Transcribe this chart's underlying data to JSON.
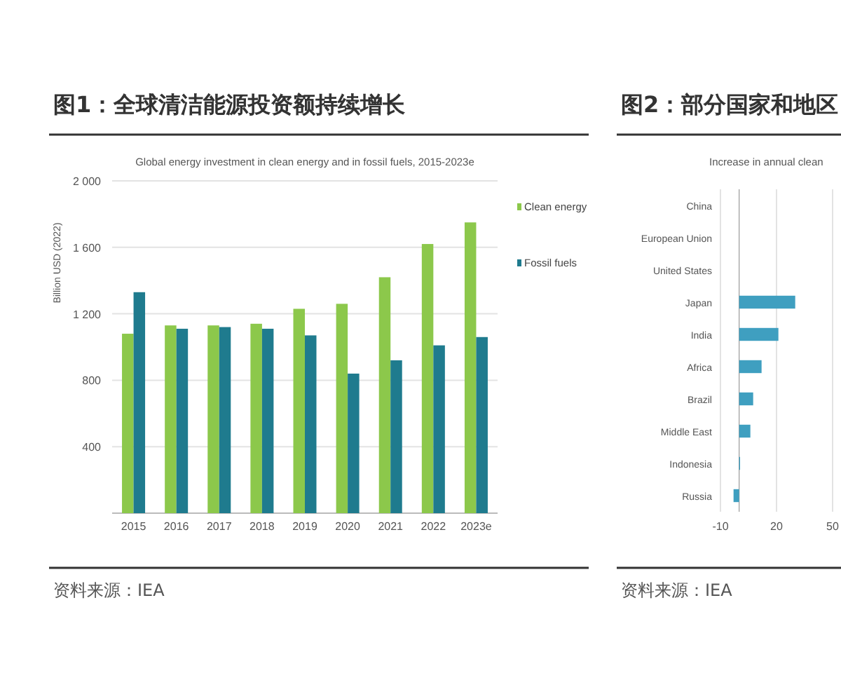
{
  "chart_data": [
    {
      "type": "bar",
      "title": "图1：全球清洁能源投资额持续增长",
      "subtitle": "Global energy investment in clean energy and in fossil fuels, 2015-2023e",
      "ylabel": "Billion USD (2022)",
      "categories": [
        "2015",
        "2016",
        "2017",
        "2018",
        "2019",
        "2020",
        "2021",
        "2022",
        "2023e"
      ],
      "series": [
        {
          "name": "Clean energy",
          "color": "#8cc84b",
          "values": [
            1080,
            1130,
            1130,
            1140,
            1230,
            1260,
            1420,
            1620,
            1750
          ]
        },
        {
          "name": "Fossil fuels",
          "color": "#1f7b8e",
          "values": [
            1330,
            1110,
            1120,
            1110,
            1070,
            840,
            920,
            1010,
            1060
          ]
        }
      ],
      "ylim": [
        0,
        2000
      ],
      "yticks": [
        {
          "value": 0,
          "label": null
        },
        {
          "value": 400,
          "label": "400"
        },
        {
          "value": 800,
          "label": "800"
        },
        {
          "value": 1200,
          "label": "1 200"
        },
        {
          "value": 1600,
          "label": "1 600"
        },
        {
          "value": 2000,
          "label": "2 000"
        }
      ],
      "grid": "y",
      "legend": "right",
      "annotations": [
        "资料来源：IEA"
      ]
    },
    {
      "type": "bar",
      "orientation": "horizontal",
      "title": "图2：部分国家和地区",
      "subtitle": "Increase in annual clean",
      "categories": [
        "China",
        "European Union",
        "United States",
        "Japan",
        "India",
        "Africa",
        "Brazil",
        "Middle East",
        "Indonesia",
        "Russia"
      ],
      "series": [
        {
          "color": "#3f9fc0",
          "values": [
            null,
            null,
            null,
            30,
            21,
            12,
            7.5,
            6,
            0.5,
            -3
          ]
        }
      ],
      "xlim": [
        -10,
        50
      ],
      "xticks": [
        -10,
        20,
        50
      ],
      "grid": "x",
      "annotations": [
        "资料来源：IEA"
      ]
    }
  ]
}
